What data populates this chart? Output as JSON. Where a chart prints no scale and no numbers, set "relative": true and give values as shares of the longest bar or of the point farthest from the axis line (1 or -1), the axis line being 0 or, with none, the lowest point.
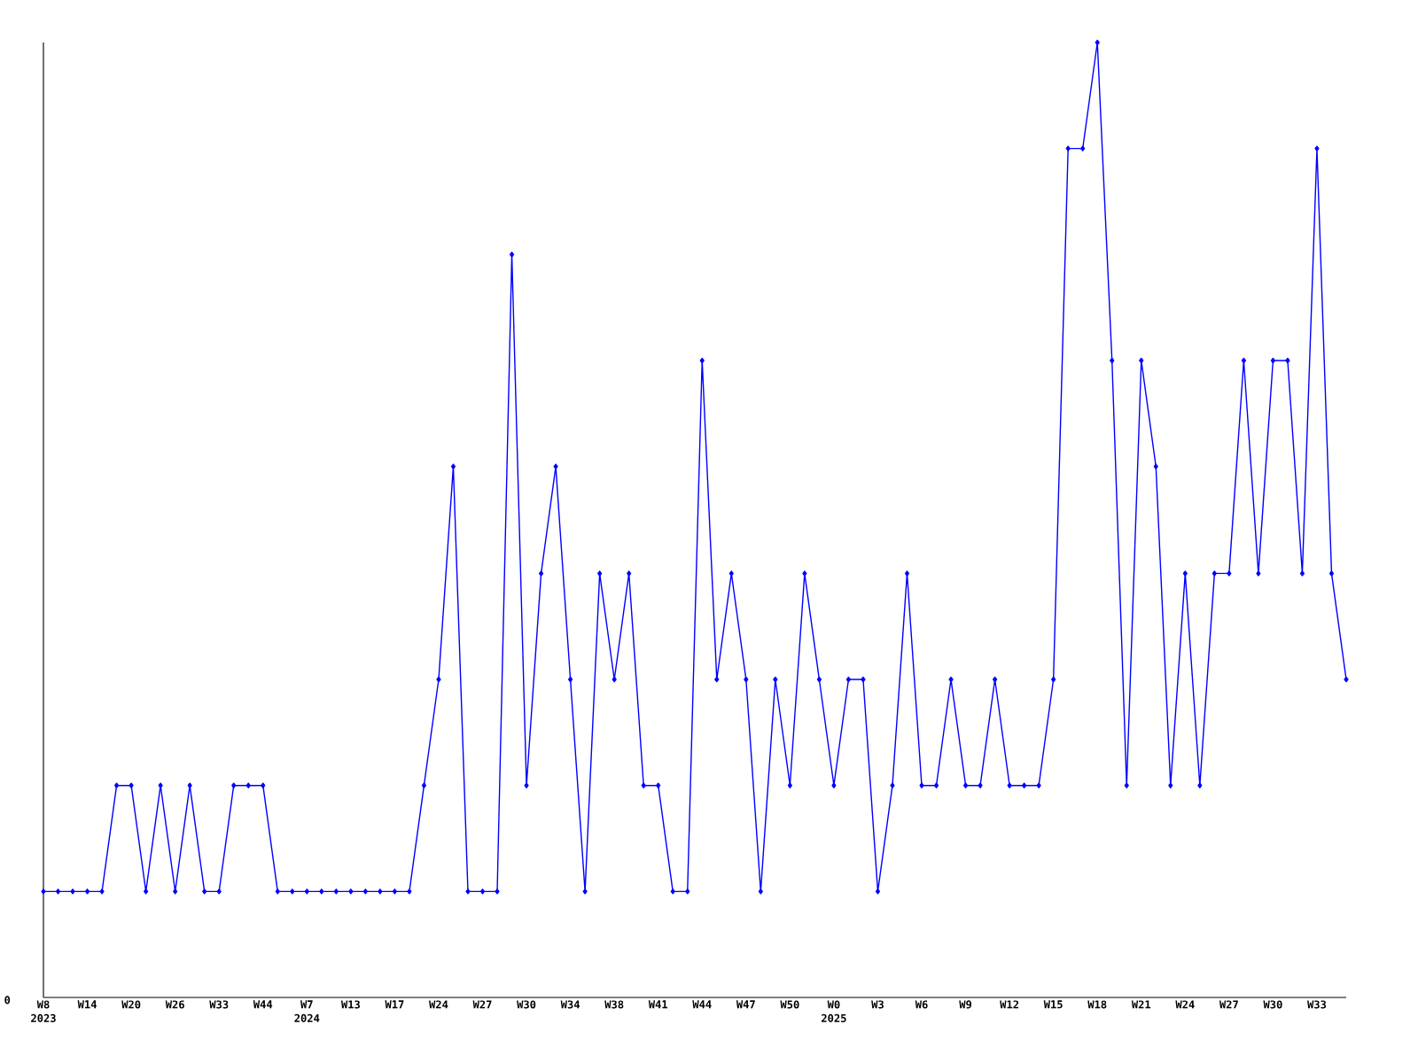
{
  "chart_data": {
    "type": "line",
    "relative": true,
    "color": "#0000ff",
    "marker": "diamond",
    "line_style": "solid",
    "categories": [
      "W8",
      null,
      null,
      "W14",
      null,
      null,
      "W20",
      null,
      null,
      "W26",
      null,
      null,
      "W33",
      null,
      null,
      "W44",
      null,
      null,
      "W7",
      null,
      null,
      "W13",
      null,
      null,
      "W17",
      null,
      null,
      "W24",
      null,
      null,
      "W27",
      null,
      null,
      "W30",
      null,
      null,
      "W34",
      null,
      null,
      "W38",
      null,
      null,
      "W41",
      null,
      null,
      "W44",
      null,
      null,
      "W47",
      null,
      null,
      "W50",
      null,
      null,
      "W0",
      null,
      null,
      "W3",
      null,
      null,
      "W6",
      null,
      null,
      "W9",
      null,
      null,
      "W12",
      null,
      null,
      "W15",
      null,
      null,
      "W18",
      null,
      null,
      "W21",
      null,
      null,
      "W24",
      null,
      null,
      "W27",
      null,
      null,
      "W30",
      null,
      null,
      "W33",
      null,
      null
    ],
    "values": [
      0.111,
      0.111,
      0.111,
      0.111,
      0.111,
      0.222,
      0.222,
      0.111,
      0.222,
      0.111,
      0.222,
      0.111,
      0.111,
      0.222,
      0.222,
      0.222,
      0.111,
      0.111,
      0.111,
      0.111,
      0.111,
      0.111,
      0.111,
      0.111,
      0.111,
      0.111,
      0.222,
      0.333,
      0.556,
      0.111,
      0.111,
      0.111,
      0.778,
      0.222,
      0.444,
      0.556,
      0.333,
      0.111,
      0.444,
      0.333,
      0.444,
      0.222,
      0.222,
      0.111,
      0.111,
      0.667,
      0.333,
      0.444,
      0.333,
      0.111,
      0.333,
      0.222,
      0.444,
      0.333,
      0.222,
      0.333,
      0.333,
      0.111,
      0.222,
      0.444,
      0.222,
      0.222,
      0.333,
      0.222,
      0.222,
      0.333,
      0.222,
      0.222,
      0.222,
      0.333,
      0.889,
      0.889,
      1,
      0.667,
      0.222,
      0.667,
      0.556,
      0.222,
      0.444,
      0.222,
      0.444,
      0.444,
      0.667,
      0.444,
      0.667,
      0.667,
      0.444,
      0.889,
      0.444,
      0.333
    ],
    "annotations": [
      "0",
      "2023",
      "2024",
      "2025"
    ]
  }
}
